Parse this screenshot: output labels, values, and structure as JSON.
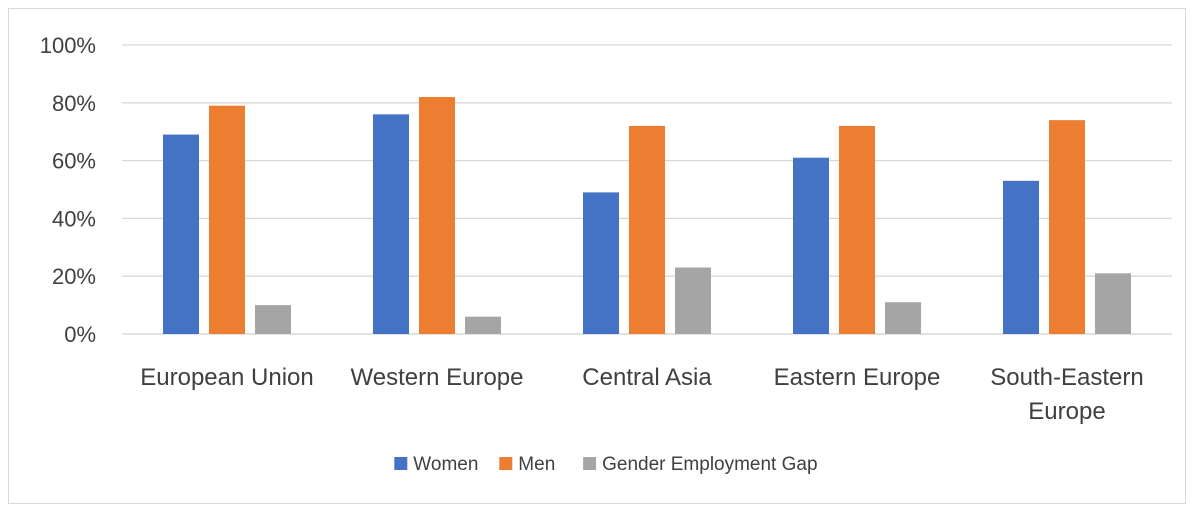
{
  "chart_data": {
    "type": "bar",
    "categories": [
      [
        "European Union"
      ],
      [
        "Western Europe"
      ],
      [
        "Central Asia"
      ],
      [
        "Eastern Europe"
      ],
      [
        "South-Eastern",
        "Europe"
      ]
    ],
    "series": [
      {
        "name": "Women",
        "color": "#4472c4",
        "values": [
          69,
          76,
          49,
          61,
          53
        ]
      },
      {
        "name": "Men",
        "color": "#ed7d31",
        "values": [
          79,
          82,
          72,
          72,
          74
        ]
      },
      {
        "name": "Gender Employment Gap",
        "color": "#a5a5a5",
        "values": [
          10,
          6,
          23,
          11,
          21
        ]
      }
    ],
    "y_ticks": [
      "0%",
      "20%",
      "40%",
      "60%",
      "80%",
      "100%"
    ],
    "ylim": [
      0,
      100
    ],
    "grid": true,
    "legend_position": "bottom",
    "title": "",
    "xlabel": "",
    "ylabel": ""
  }
}
